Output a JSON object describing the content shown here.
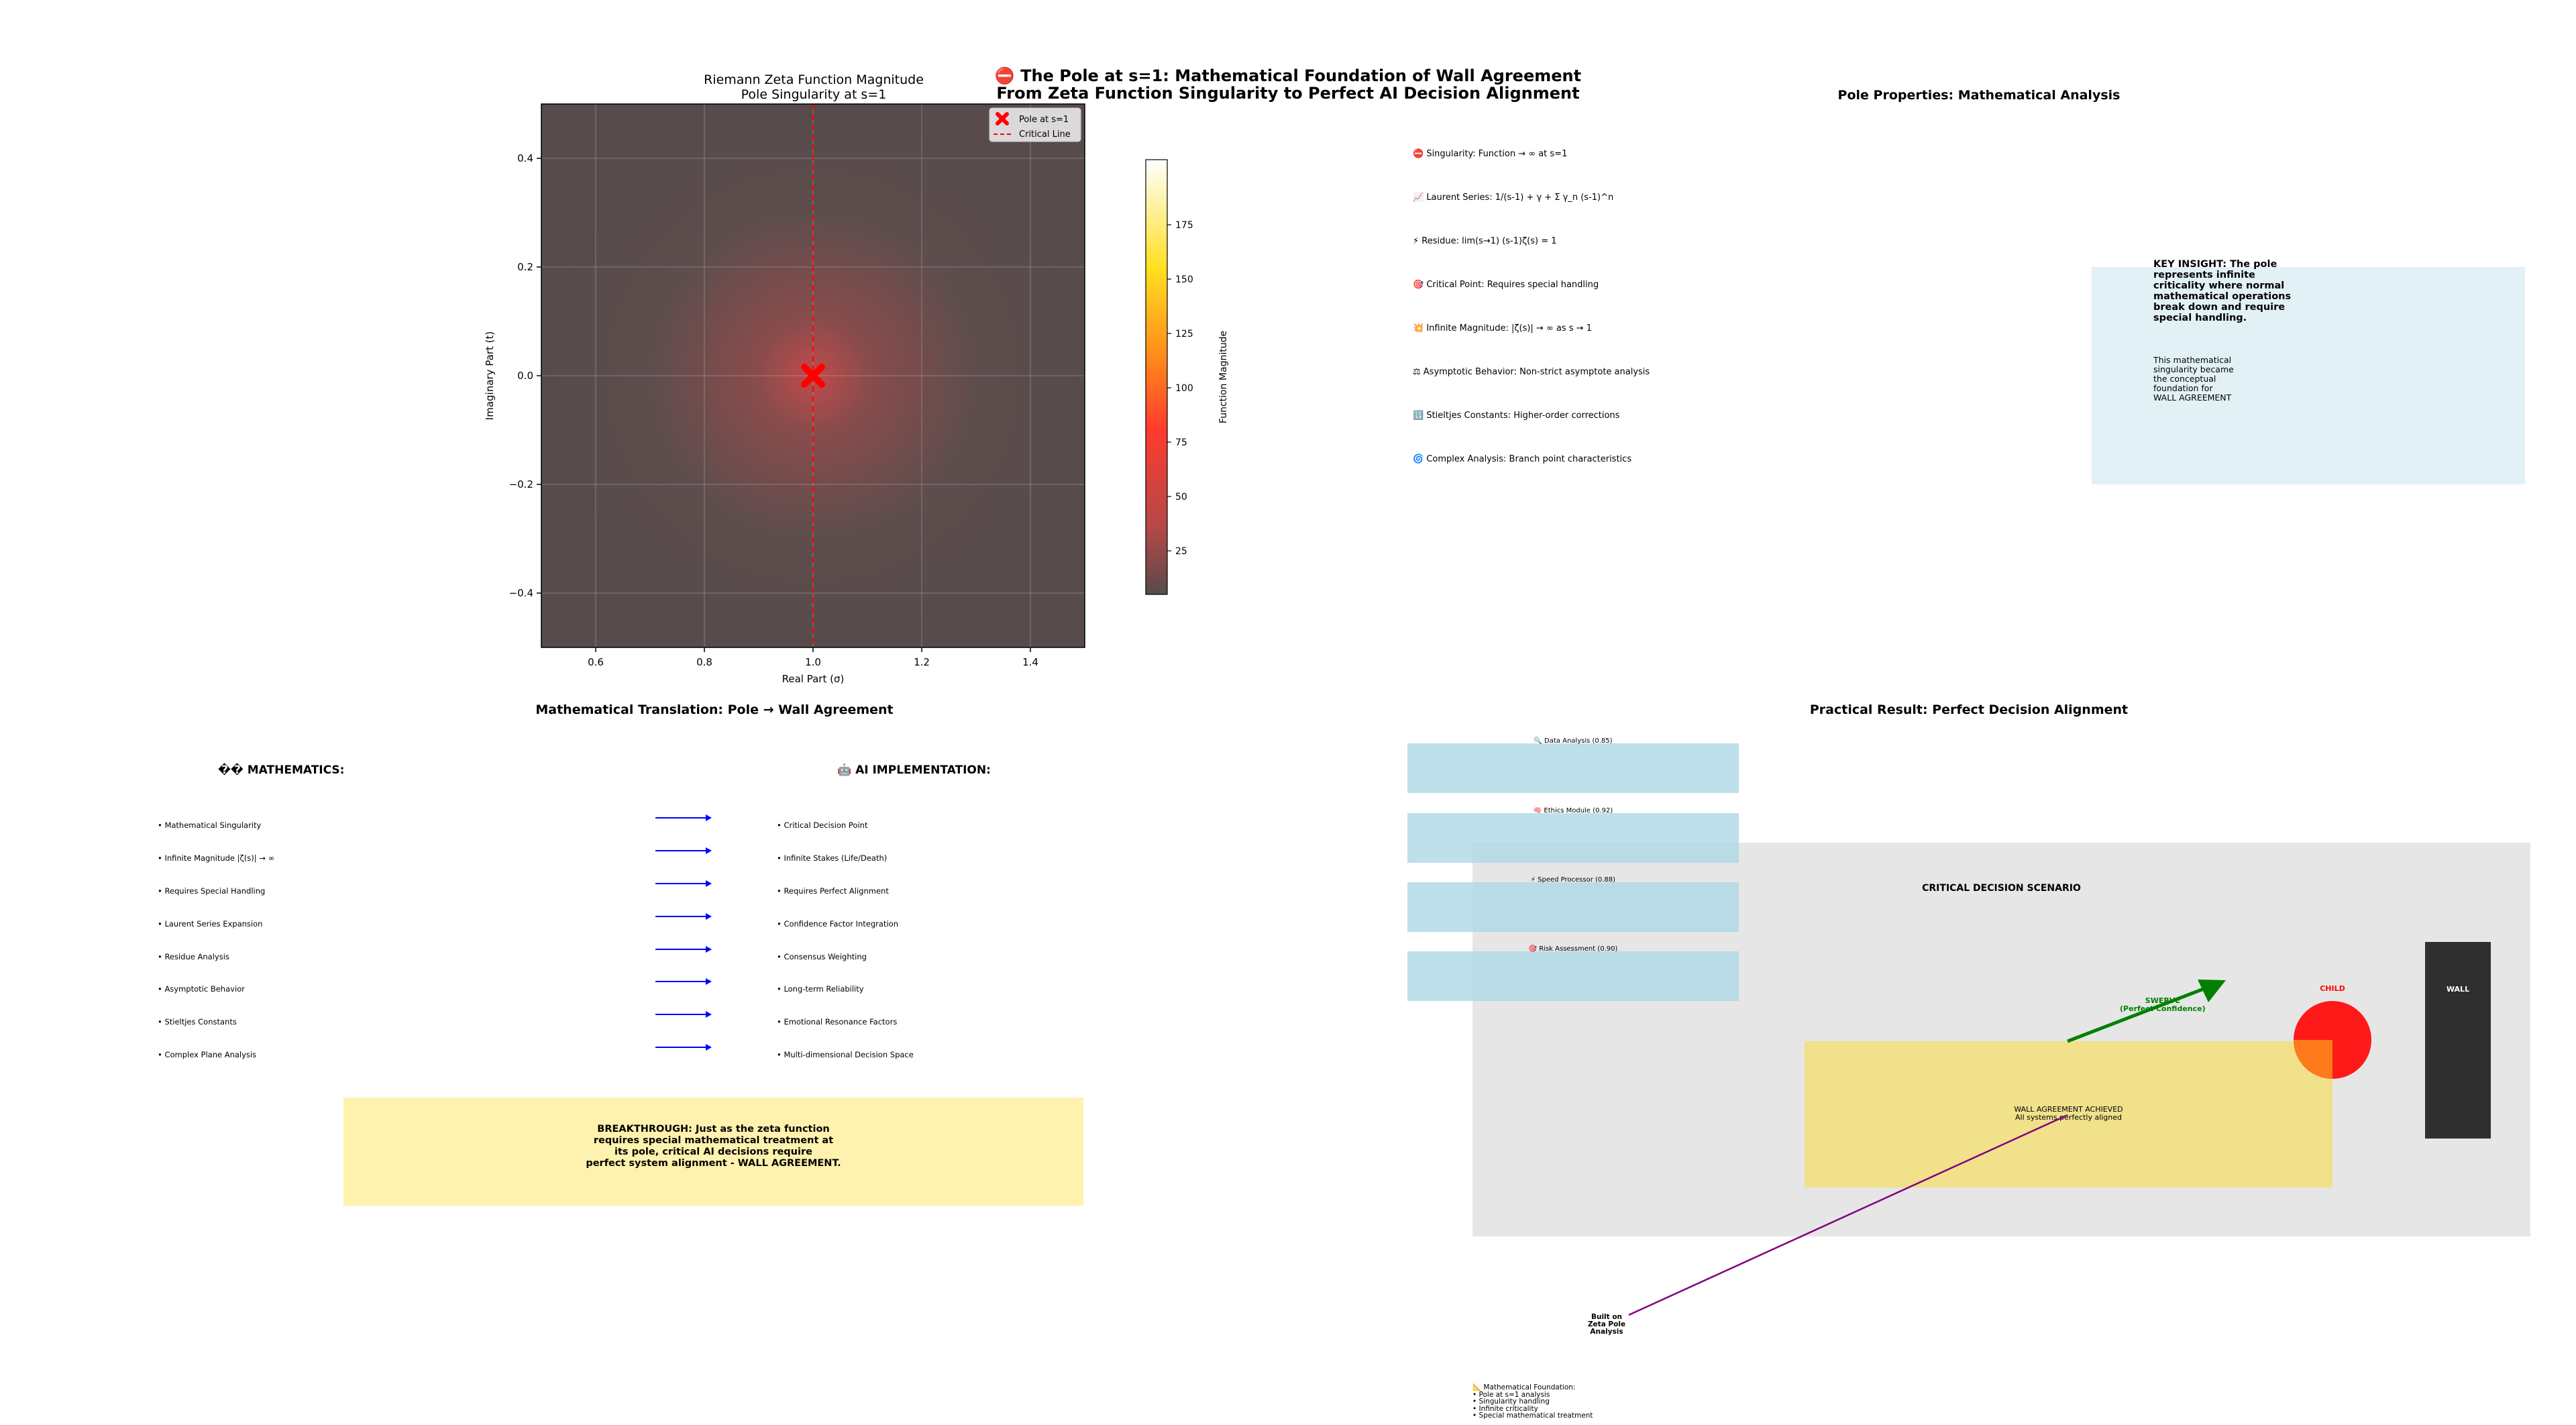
{
  "suptitle": {
    "line1": "⛔ The Pole at s=1: Mathematical Foundation of Wall Agreement",
    "line2": "From Zeta Function Singularity to Perfect AI Decision Alignment"
  },
  "chart_data": [
    {
      "type": "heatmap",
      "title": "Riemann Zeta Function Magnitude",
      "subtitle": "Pole Singularity at s=1",
      "xlabel": "Real Part (σ)",
      "ylabel": "Imaginary Part (t)",
      "xlim": [
        0.5,
        1.5
      ],
      "ylim": [
        -0.5,
        0.5
      ],
      "xticks": [
        "0.6",
        "0.8",
        "1.0",
        "1.2",
        "1.4"
      ],
      "yticks": [
        "0.4",
        "0.2",
        "0.0",
        "−0.2",
        "−0.4"
      ],
      "grid": true,
      "colorbar": {
        "label": "Function Magnitude",
        "ticks": [
          "175",
          "150",
          "125",
          "100",
          "75",
          "50",
          "25"
        ],
        "range": [
          0,
          200
        ]
      },
      "pole": {
        "x": 1.0,
        "y": 0.0,
        "label": "Pole at s=1",
        "color": "#ff0000"
      },
      "critical_line": {
        "x": 1.0,
        "label": "Critical Line",
        "color": "#ff0000"
      },
      "legend_placement": "top-right"
    }
  ],
  "properties": {
    "title": "Pole Properties: Mathematical Analysis",
    "items": [
      "⛔ Singularity: Function → ∞ at s=1",
      "📈 Laurent Series: 1/(s-1) + γ + Σ γ_n (s-1)^n",
      "⚡ Residue: lim(s→1) (s-1)ζ(s) = 1",
      "🎯 Critical Point: Requires special handling",
      "💥 Infinite Magnitude: |ζ(s)| → ∞ as s → 1",
      "⚖ Asymptotic Behavior: Non-strict asymptote analysis",
      "🔢 Stieltjes Constants: Higher-order corrections",
      "🌀 Complex Analysis: Branch point characteristics"
    ],
    "insight_bold": [
      "KEY INSIGHT: The pole",
      "represents infinite",
      "criticality where normal",
      "mathematical operations",
      "break down and require",
      "special handling."
    ],
    "insight_normal": [
      "This mathematical",
      "singularity became",
      "the conceptual",
      "foundation for",
      "WALL AGREEMENT"
    ]
  },
  "translation": {
    "title": "Mathematical Translation: Pole → Wall Agreement",
    "left_header": "�� MATHEMATICS:",
    "right_header": "🤖 AI IMPLEMENTATION:",
    "left": [
      "• Mathematical Singularity",
      "• Infinite Magnitude |ζ(s)| → ∞",
      "• Requires Special Handling",
      "• Laurent Series Expansion",
      "• Residue Analysis",
      "• Asymptotic Behavior",
      "• Stieltjes Constants",
      "• Complex Plane Analysis"
    ],
    "right": [
      "• Critical Decision Point",
      "• Infinite Stakes (Life/Death)",
      "• Requires Perfect Alignment",
      "• Confidence Factor Integration",
      "• Consensus Weighting",
      "• Long-term Reliability",
      "• Emotional Resonance Factors",
      "• Multi-dimensional Decision Space"
    ],
    "breakthrough": [
      "BREAKTHROUGH: Just as the zeta function",
      "requires special mathematical treatment at",
      "its pole, critical AI decisions require",
      "perfect system alignment - WALL AGREEMENT."
    ]
  },
  "result": {
    "title": "Practical Result: Perfect Decision Alignment",
    "systems": [
      "🔍 Data Analysis (0.85)",
      "🧠 Ethics Module (0.92)",
      "⚡ Speed Processor (0.88)",
      "🎯 Risk Assessment (0.90)"
    ],
    "scenario_title": "CRITICAL DECISION SCENARIO",
    "swerve": [
      "SWERVE",
      "(Perfect Confidence)"
    ],
    "child": "CHILD",
    "wall": "WALL",
    "agreement": [
      "WALL AGREEMENT ACHIEVED",
      "All systems perfectly aligned"
    ],
    "built_on": [
      "Built on",
      "Zeta Pole",
      "Analysis"
    ],
    "foundation": [
      "📐 Mathematical Foundation:",
      "• Pole at s=1 analysis",
      "• Singularity handling",
      "• Infinite criticality",
      "• Special mathematical treatment"
    ],
    "colors": {
      "swerve": "#008000",
      "child": "#ff0000",
      "wall": "#2f2f2f",
      "agreement_box": "#f0e18a",
      "scenario_bg": "#e6e6e6",
      "system_box": "#add8e6"
    }
  }
}
